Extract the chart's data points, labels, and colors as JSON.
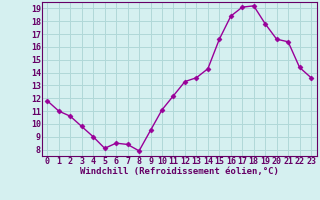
{
  "x": [
    0,
    1,
    2,
    3,
    4,
    5,
    6,
    7,
    8,
    9,
    10,
    11,
    12,
    13,
    14,
    15,
    16,
    17,
    18,
    19,
    20,
    21,
    22,
    23
  ],
  "y": [
    11.8,
    11.0,
    10.6,
    9.8,
    9.0,
    8.1,
    8.5,
    8.4,
    7.9,
    9.5,
    11.1,
    12.2,
    13.3,
    13.6,
    14.3,
    16.6,
    18.4,
    19.1,
    19.2,
    17.8,
    16.6,
    16.4,
    14.4,
    13.6
  ],
  "line_color": "#990099",
  "marker": "D",
  "marker_size": 2.5,
  "bg_color": "#d5f0f0",
  "grid_color": "#b0d8d8",
  "xlabel": "Windchill (Refroidissement éolien,°C)",
  "xlabel_color": "#660066",
  "tick_color": "#660066",
  "xlim": [
    -0.5,
    23.5
  ],
  "ylim": [
    7.5,
    19.5
  ],
  "yticks": [
    8,
    9,
    10,
    11,
    12,
    13,
    14,
    15,
    16,
    17,
    18,
    19
  ],
  "xticks": [
    0,
    1,
    2,
    3,
    4,
    5,
    6,
    7,
    8,
    9,
    10,
    11,
    12,
    13,
    14,
    15,
    16,
    17,
    18,
    19,
    20,
    21,
    22,
    23
  ],
  "font_family": "monospace",
  "tick_fontsize": 6,
  "xlabel_fontsize": 6.5
}
